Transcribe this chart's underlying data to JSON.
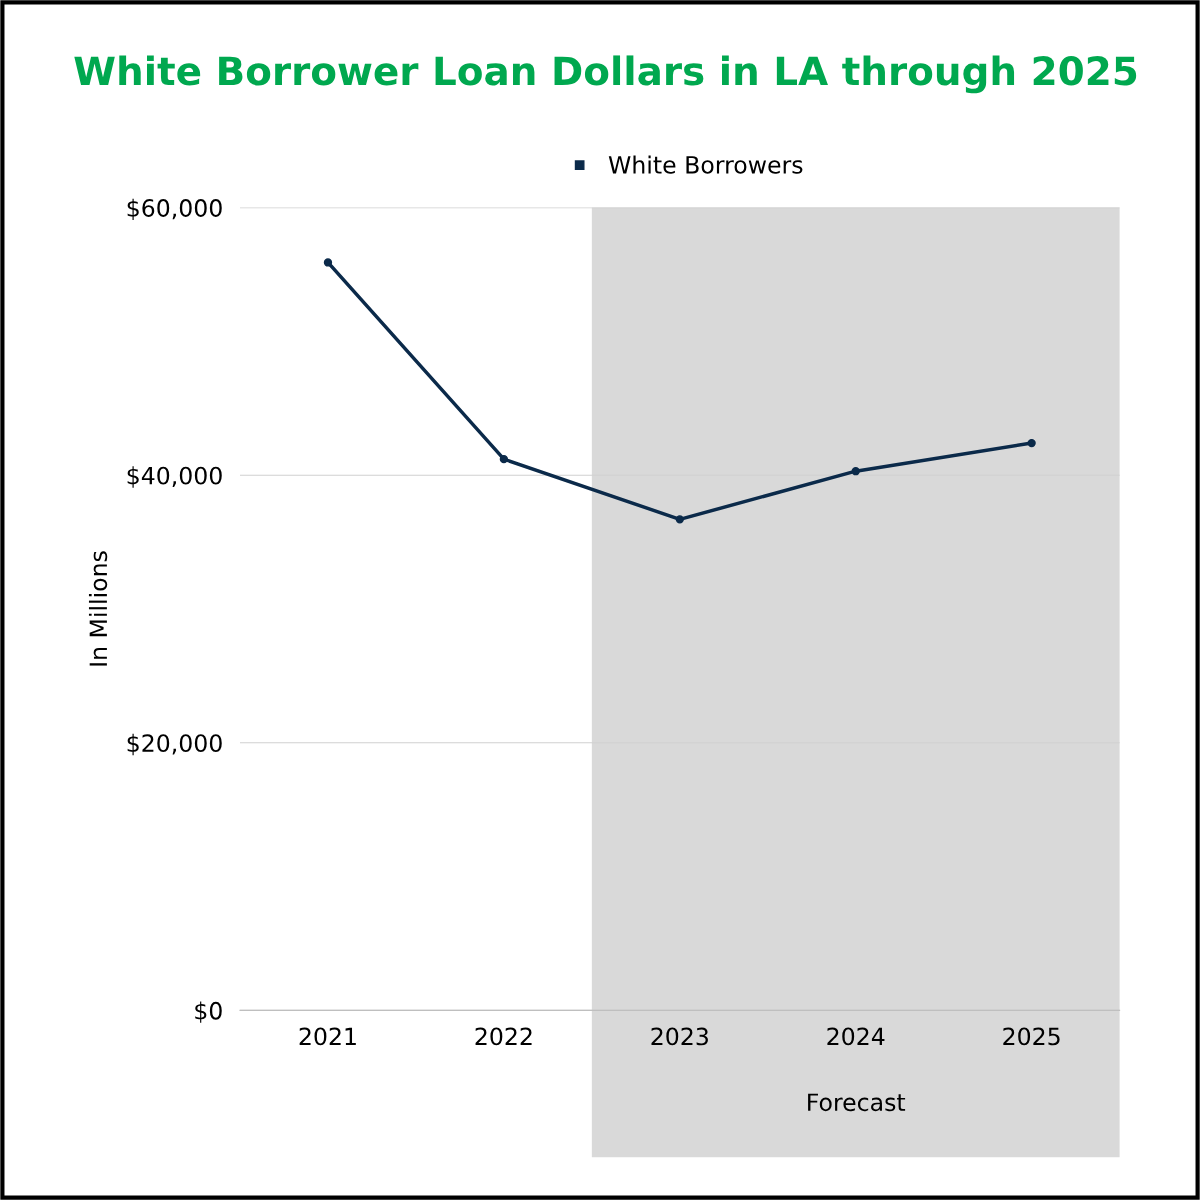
{
  "chart_data": {
    "type": "line",
    "title": "White Borrower Loan Dollars in LA through 2025",
    "ylabel": "In Millions",
    "categories": [
      "2021",
      "2022",
      "2023",
      "2024",
      "2025"
    ],
    "series": [
      {
        "name": "White Borrowers",
        "color": "#0b2a4a",
        "values": [
          55900,
          41200,
          36700,
          40300,
          42400
        ]
      }
    ],
    "ylim": [
      0,
      60000
    ],
    "yticks": [
      {
        "value": 0,
        "label": "$0"
      },
      {
        "value": 20000,
        "label": "$20,000"
      },
      {
        "value": 40000,
        "label": "$40,000"
      },
      {
        "value": 60000,
        "label": "$60,000"
      }
    ],
    "bands": [
      {
        "axis": "x",
        "from": "2023",
        "to": "2025",
        "label": "Forecast",
        "color": "#d9d9d9"
      }
    ],
    "grid": "y",
    "legend": "top",
    "marker": "circle",
    "line_style": "solid"
  }
}
